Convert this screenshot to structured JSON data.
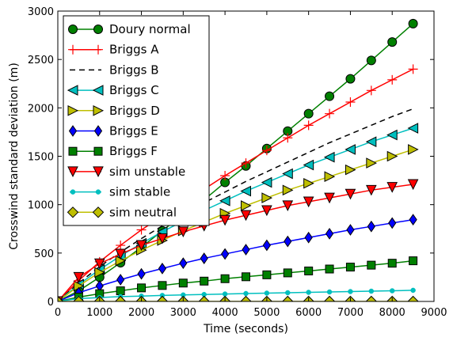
{
  "chart_data": {
    "type": "line",
    "title": "",
    "xlabel": "Time (seconds)",
    "ylabel": "Crosswind standard deviation (m)",
    "xlim": [
      0,
      9000
    ],
    "ylim": [
      0,
      3000
    ],
    "xticks": [
      0,
      1000,
      2000,
      3000,
      4000,
      5000,
      6000,
      7000,
      8000,
      9000
    ],
    "yticks": [
      0,
      500,
      1000,
      1500,
      2000,
      2500,
      3000
    ],
    "xtick_labels": [
      "0",
      "1000",
      "2000",
      "3000",
      "4000",
      "5000",
      "6000",
      "7000",
      "8000",
      "9000"
    ],
    "ytick_labels": [
      "0",
      "500",
      "1000",
      "1500",
      "2000",
      "2500",
      "3000"
    ],
    "grid": false,
    "legend_position": "top-left",
    "series": [
      {
        "name": "Doury normal",
        "color": "#008000",
        "marker": "circle",
        "line": "solid",
        "x": [
          0,
          500,
          1000,
          1500,
          2000,
          2500,
          3000,
          3500,
          4000,
          4500,
          5000,
          5500,
          6000,
          6500,
          7000,
          7500,
          8000,
          8500
        ],
        "y": [
          0,
          110,
          250,
          400,
          560,
          730,
          900,
          1050,
          1230,
          1400,
          1580,
          1760,
          1940,
          2120,
          2300,
          2490,
          2680,
          2870
        ]
      },
      {
        "name": "Briggs A",
        "color": "#ff0000",
        "marker": "plus",
        "line": "solid",
        "x": [
          0,
          500,
          1000,
          1500,
          2000,
          2500,
          3000,
          3500,
          4000,
          4500,
          5000,
          5500,
          6000,
          6500,
          7000,
          7500,
          8000,
          8500
        ],
        "y": [
          0,
          215,
          410,
          580,
          740,
          880,
          1020,
          1160,
          1300,
          1430,
          1560,
          1690,
          1820,
          1940,
          2060,
          2180,
          2290,
          2400
        ]
      },
      {
        "name": "Briggs B",
        "color": "#000000",
        "marker": "none",
        "line": "dashed",
        "x": [
          0,
          500,
          1000,
          1500,
          2000,
          2500,
          3000,
          3500,
          4000,
          4500,
          5000,
          5500,
          6000,
          6500,
          7000,
          7500,
          8000,
          8500
        ],
        "y": [
          0,
          190,
          360,
          510,
          650,
          780,
          900,
          1020,
          1130,
          1240,
          1340,
          1440,
          1540,
          1640,
          1730,
          1820,
          1910,
          1990
        ]
      },
      {
        "name": "Briggs C",
        "color": "#00bfbf",
        "marker": "triangle-left",
        "line": "solid",
        "x": [
          0,
          500,
          1000,
          1500,
          2000,
          2500,
          3000,
          3500,
          4000,
          4500,
          5000,
          5500,
          6000,
          6500,
          7000,
          7500,
          8000,
          8500
        ],
        "y": [
          0,
          175,
          330,
          470,
          600,
          720,
          830,
          940,
          1040,
          1140,
          1230,
          1320,
          1410,
          1490,
          1570,
          1650,
          1720,
          1790
        ]
      },
      {
        "name": "Briggs D",
        "color": "#bfbf00",
        "marker": "triangle-right",
        "line": "solid",
        "x": [
          0,
          500,
          1000,
          1500,
          2000,
          2500,
          3000,
          3500,
          4000,
          4500,
          5000,
          5500,
          6000,
          6500,
          7000,
          7500,
          8000,
          8500
        ],
        "y": [
          0,
          160,
          300,
          420,
          530,
          630,
          730,
          820,
          910,
          990,
          1070,
          1150,
          1220,
          1290,
          1360,
          1430,
          1500,
          1570
        ]
      },
      {
        "name": "Briggs E",
        "color": "#0000ff",
        "marker": "thin-diamond",
        "line": "solid",
        "x": [
          0,
          500,
          1000,
          1500,
          2000,
          2500,
          3000,
          3500,
          4000,
          4500,
          5000,
          5500,
          6000,
          6500,
          7000,
          7500,
          8000,
          8500
        ],
        "y": [
          0,
          90,
          160,
          225,
          285,
          340,
          395,
          445,
          490,
          535,
          580,
          620,
          660,
          700,
          740,
          775,
          810,
          845
        ]
      },
      {
        "name": "Briggs F",
        "color": "#008000",
        "marker": "square",
        "line": "solid",
        "x": [
          0,
          500,
          1000,
          1500,
          2000,
          2500,
          3000,
          3500,
          4000,
          4500,
          5000,
          5500,
          6000,
          6500,
          7000,
          7500,
          8000,
          8500
        ],
        "y": [
          0,
          45,
          80,
          110,
          140,
          165,
          190,
          210,
          235,
          255,
          275,
          295,
          315,
          335,
          355,
          375,
          395,
          420
        ]
      },
      {
        "name": "sim unstable",
        "color": "#ff0000",
        "marker": "triangle-down",
        "line": "solid",
        "x": [
          0,
          500,
          1000,
          1500,
          2000,
          2500,
          3000,
          3500,
          4000,
          4500,
          5000,
          5500,
          6000,
          6500,
          7000,
          7500,
          8000,
          8500
        ],
        "y": [
          0,
          250,
          390,
          490,
          580,
          650,
          720,
          780,
          840,
          890,
          940,
          990,
          1030,
          1070,
          1110,
          1150,
          1180,
          1210
        ]
      },
      {
        "name": "sim stable",
        "color": "#00bfbf",
        "marker": "dot",
        "line": "solid",
        "x": [
          0,
          500,
          1000,
          1500,
          2000,
          2500,
          3000,
          3500,
          4000,
          4500,
          5000,
          5500,
          6000,
          6500,
          7000,
          7500,
          8000,
          8500
        ],
        "y": [
          0,
          30,
          40,
          50,
          55,
          62,
          67,
          72,
          77,
          82,
          86,
          90,
          94,
          98,
          102,
          106,
          110,
          115
        ]
      },
      {
        "name": "sim neutral",
        "color": "#bfbf00",
        "marker": "diamond",
        "line": "solid",
        "x": [
          0,
          500,
          1000,
          1500,
          2000,
          2500,
          3000,
          3500,
          4000,
          4500,
          5000,
          5500,
          6000,
          6500,
          7000,
          7500,
          8000,
          8500
        ],
        "y": [
          0,
          0,
          0,
          0,
          0,
          0,
          0,
          0,
          0,
          0,
          0,
          0,
          0,
          0,
          0,
          0,
          0,
          0
        ]
      }
    ]
  }
}
